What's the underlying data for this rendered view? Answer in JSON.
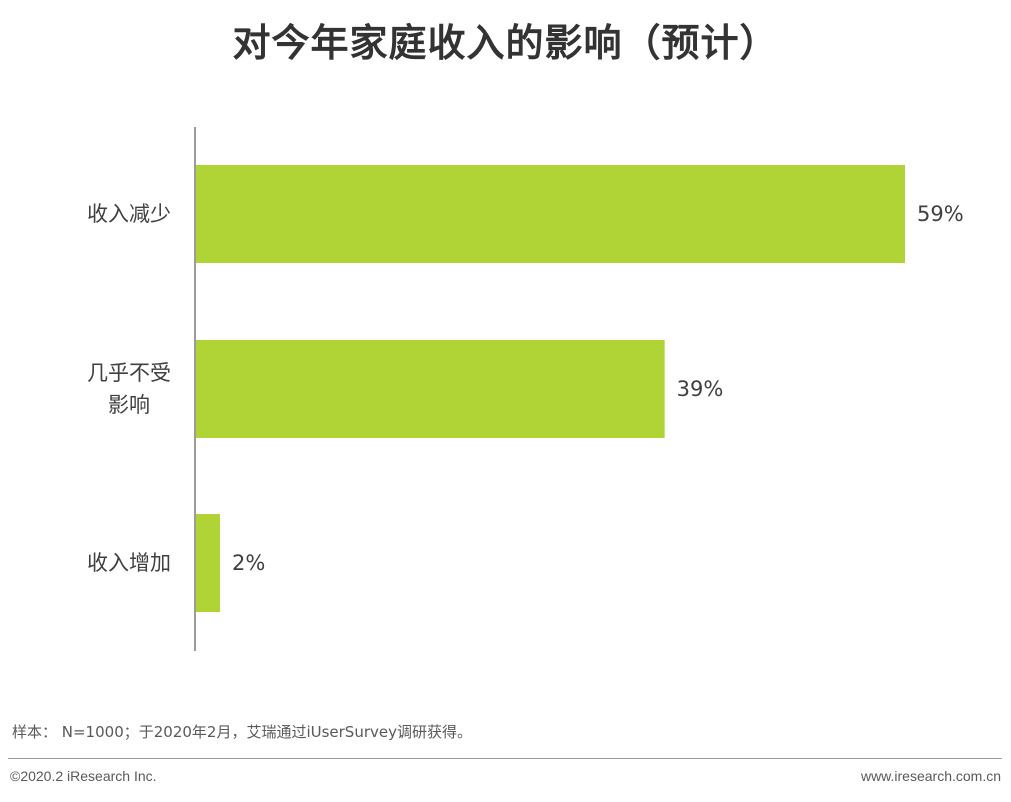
{
  "chart_data": {
    "type": "bar",
    "orientation": "horizontal",
    "title": "对今年家庭收入的影响（预计）",
    "categories": [
      [
        "收入减少"
      ],
      [
        "几乎不受",
        "影响"
      ],
      [
        "收入增加"
      ]
    ],
    "values": [
      59,
      39,
      2
    ],
    "value_labels": [
      "59%",
      "39%",
      "2%"
    ],
    "unit": "%",
    "xlim": [
      0,
      59
    ],
    "grid": false,
    "legend": "none",
    "bar_color": "#b0d335"
  },
  "note": "样本： N=1000；于2020年2月，艾瑞通过iUserSurvey调研获得。",
  "footer": {
    "copyright": "©2020.2 iResearch Inc.",
    "website": "www.iresearch.com.cn"
  }
}
